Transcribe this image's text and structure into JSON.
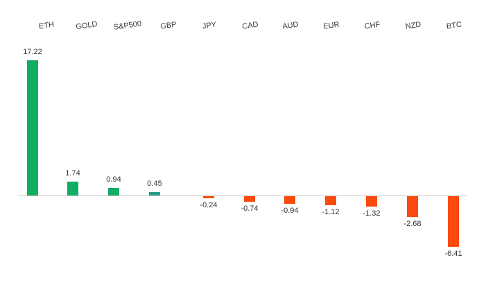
{
  "chart_data": {
    "type": "bar",
    "title": "",
    "xlabel": "",
    "ylabel": "",
    "categories": [
      "ETH",
      "GOLD",
      "S&P500",
      "GBP",
      "JPY",
      "CAD",
      "AUD",
      "EUR",
      "CHF",
      "NZD",
      "BTC"
    ],
    "values": [
      17.22,
      1.74,
      0.94,
      0.45,
      -0.24,
      -0.74,
      -0.94,
      -1.12,
      -1.32,
      -2.68,
      -6.41
    ],
    "data_labels": [
      "17.22",
      "1.74",
      "0.94",
      "0.45",
      "-0.24",
      "-0.74",
      "-0.94",
      "-1.12",
      "-1.32",
      "-2.68",
      "-6.41"
    ],
    "bar_colors": [
      "#0FAE62",
      "#0FAE62",
      "#11AC65",
      "#2A9D8F",
      "#FA4A0D",
      "#FA4A0D",
      "#FA4A0D",
      "#FA4A0D",
      "#FA4A0D",
      "#FA4A0D",
      "#FA4A0D"
    ],
    "colors": {
      "positive": "#0FAE62",
      "positive_small": "#2A9D8F",
      "negative": "#FA4A0D",
      "axis_line": "#C9C9C9",
      "text": "#333333",
      "background": "#FFFFFF"
    },
    "ylim": [
      -8,
      18
    ],
    "baseline_value": 0,
    "grid": false,
    "legend_position": "none",
    "tick_labels_position": "top",
    "tick_angle_deg": -8
  }
}
